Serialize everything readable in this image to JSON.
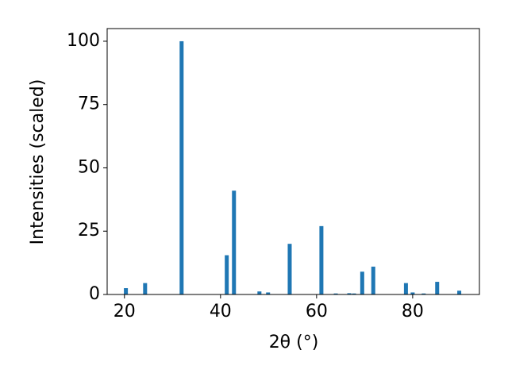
{
  "chart_data": {
    "type": "bar",
    "xlabel": "2θ (°)",
    "ylabel": "Intensities (scaled)",
    "x": [
      20.3,
      24.3,
      31.9,
      41.3,
      42.8,
      48.1,
      49.9,
      54.4,
      61.0,
      64.0,
      66.8,
      67.8,
      69.5,
      71.8,
      78.6,
      80.0,
      82.3,
      85.1,
      89.7
    ],
    "values": [
      2.5,
      4.5,
      100,
      15.5,
      41,
      1.2,
      0.8,
      20,
      27,
      0.4,
      0.5,
      0.4,
      9,
      11,
      4.5,
      0.8,
      0.4,
      5,
      1.5
    ],
    "color": "#1f77b4",
    "xlim": [
      16.4,
      93.9
    ],
    "ylim": [
      0,
      105
    ],
    "xticks": [
      20,
      40,
      60,
      80
    ],
    "yticks": [
      0,
      25,
      50,
      75,
      100
    ]
  }
}
